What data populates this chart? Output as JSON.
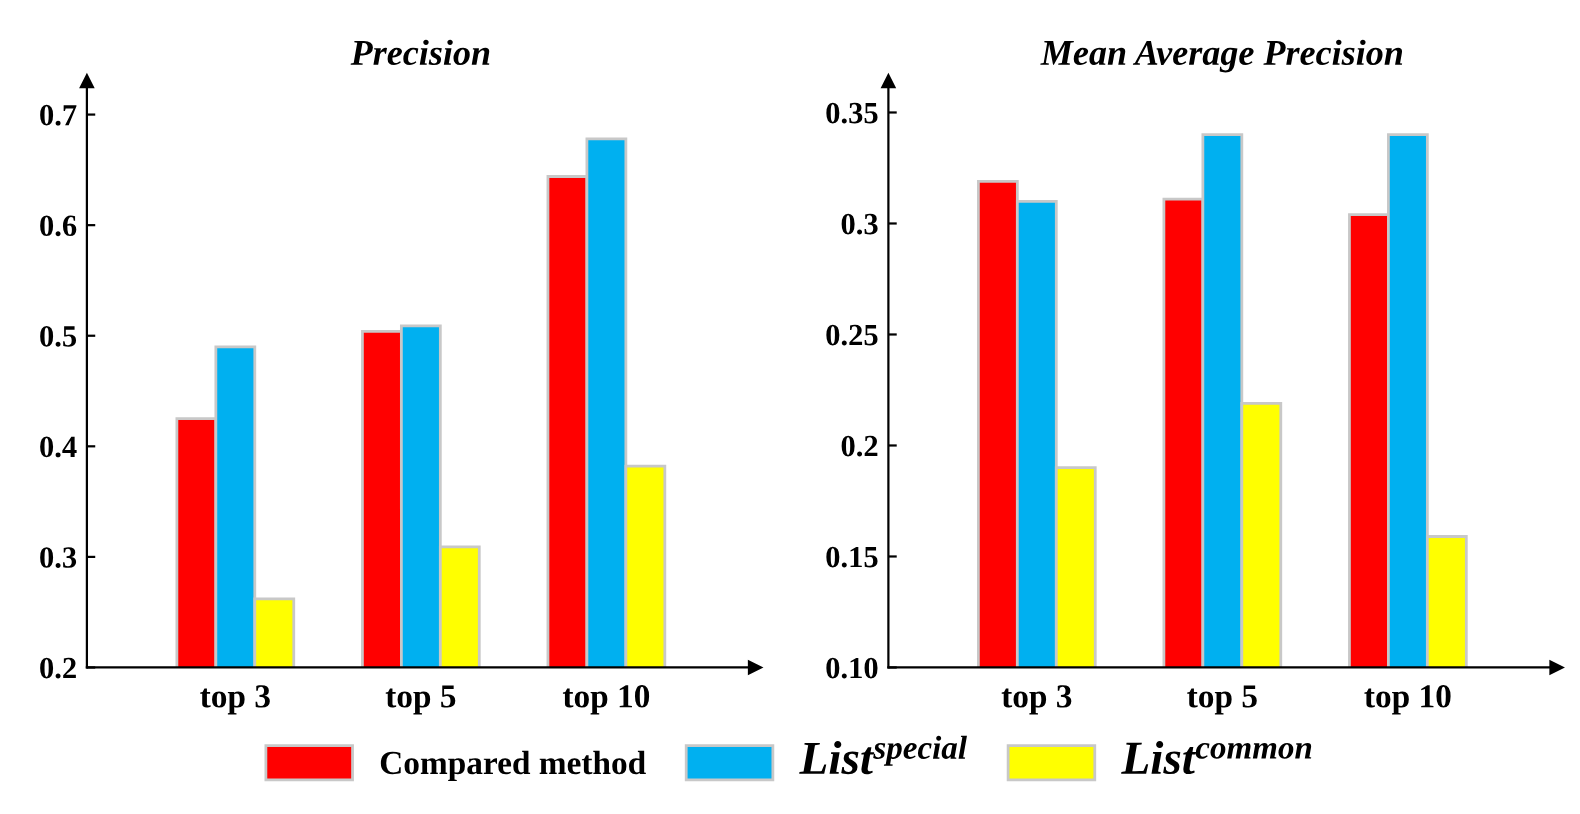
{
  "chart_data": [
    {
      "type": "bar",
      "title": "Precision",
      "categories": [
        "top 3",
        "top 5",
        "top 10"
      ],
      "series": [
        {
          "name": "Compared method",
          "color": "#ff0000",
          "values": [
            0.425,
            0.504,
            0.644
          ]
        },
        {
          "name": "List$^{special}$",
          "color": "#00b0f0",
          "values": [
            0.49,
            0.509,
            0.678
          ]
        },
        {
          "name": "List$^{common}$",
          "color": "#ffff00",
          "values": [
            0.262,
            0.309,
            0.382
          ]
        }
      ],
      "ylim": [
        0.2,
        0.73
      ],
      "yticks": [
        0.2,
        0.3,
        0.4,
        0.5,
        0.6,
        0.7
      ],
      "grid": false,
      "legend": "bottom"
    },
    {
      "type": "bar",
      "title": "Mean Average Precision",
      "categories": [
        "top 3",
        "top 5",
        "top 10"
      ],
      "series": [
        {
          "name": "Compared method",
          "color": "#ff0000",
          "values": [
            0.319,
            0.311,
            0.304
          ]
        },
        {
          "name": "List$^{special}$",
          "color": "#00b0f0",
          "values": [
            0.31,
            0.34,
            0.34
          ]
        },
        {
          "name": "List$^{common}$",
          "color": "#ffff00",
          "values": [
            0.19,
            0.219,
            0.159
          ]
        }
      ],
      "ylim": [
        0.1,
        0.364
      ],
      "yticks": [
        {
          "value": 0.1,
          "label": "0.10"
        },
        0.15,
        0.2,
        0.25,
        0.3,
        0.35
      ],
      "grid": false,
      "legend": "bottom"
    }
  ]
}
